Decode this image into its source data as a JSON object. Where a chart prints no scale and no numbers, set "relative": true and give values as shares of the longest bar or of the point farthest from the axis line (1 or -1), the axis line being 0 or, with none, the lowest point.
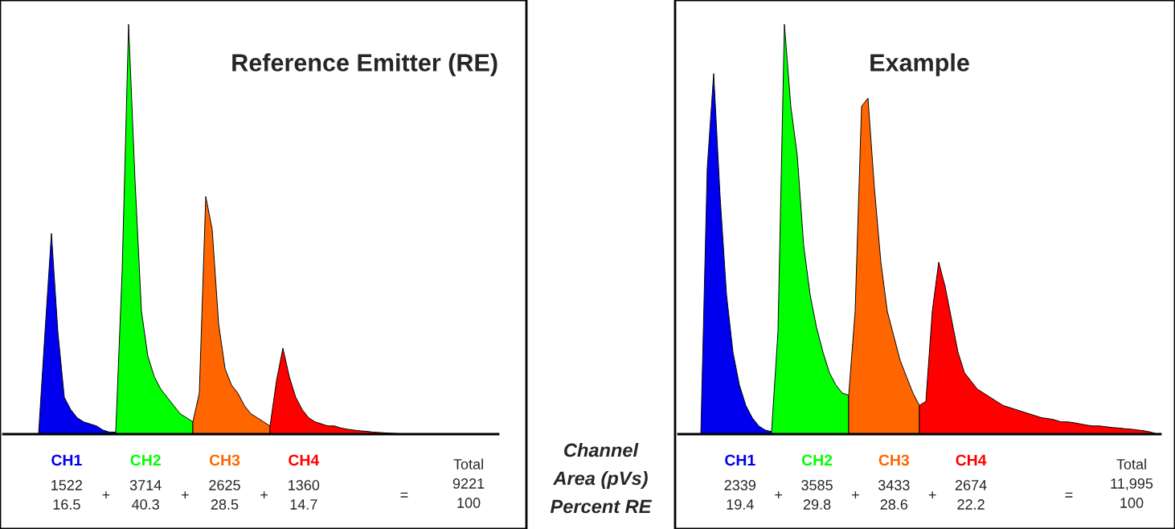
{
  "chart_data": [
    {
      "type": "area",
      "title": "Reference Emitter (RE)",
      "relative": true,
      "categories": [
        null,
        null,
        null,
        null,
        null,
        null,
        null,
        null,
        null,
        null,
        null,
        null,
        null,
        null,
        null,
        null,
        null,
        null,
        null,
        null,
        null,
        null,
        null,
        null,
        null,
        null,
        null,
        null,
        null,
        null,
        null,
        null,
        null,
        null,
        null,
        null,
        null,
        null,
        null,
        null,
        null,
        null,
        null,
        null,
        null,
        null,
        null,
        null,
        null,
        null,
        null,
        null,
        null,
        null,
        null,
        null,
        null,
        null,
        null,
        null,
        null,
        null,
        null,
        null,
        null,
        null,
        null,
        null,
        null,
        null,
        null,
        null,
        null,
        null,
        null,
        null,
        null
      ],
      "series": [
        {
          "name": "CH1",
          "color": "#0000ee",
          "values": [
            null,
            null,
            null,
            null,
            null,
            0,
            0.25,
            0.49,
            0.25,
            0.09,
            0.06,
            0.04,
            0.03,
            0.025,
            0.02,
            0.01,
            0.005,
            0.005,
            null,
            null,
            null,
            null,
            null,
            null,
            null,
            null,
            null,
            null,
            null,
            null,
            null,
            null,
            null,
            null,
            null,
            null,
            null,
            null,
            null,
            null,
            null,
            null,
            null,
            null,
            null,
            null,
            null,
            null,
            null,
            null,
            null,
            null,
            null,
            null,
            null,
            null,
            null,
            null,
            null,
            null,
            null,
            null,
            null,
            null,
            null,
            null,
            null,
            null,
            null,
            null,
            null,
            null,
            null,
            null,
            null,
            null,
            null
          ]
        },
        {
          "name": "CH2",
          "color": "#00ff00",
          "values": [
            null,
            null,
            null,
            null,
            null,
            null,
            null,
            null,
            null,
            null,
            null,
            null,
            null,
            null,
            null,
            null,
            null,
            0.005,
            0.4,
            1.0,
            0.62,
            0.3,
            0.19,
            0.14,
            0.11,
            0.09,
            0.07,
            0.05,
            0.04,
            0.03,
            null,
            null,
            null,
            null,
            null,
            null,
            null,
            null,
            null,
            null,
            null,
            null,
            null,
            null,
            null,
            null,
            null,
            null,
            null,
            null,
            null,
            null,
            null,
            null,
            null,
            null,
            null,
            null,
            null,
            null,
            null,
            null,
            null,
            null,
            null,
            null,
            null,
            null,
            null,
            null,
            null,
            null,
            null,
            null,
            null,
            null,
            null
          ]
        },
        {
          "name": "CH3",
          "color": "#ff6600",
          "values": [
            null,
            null,
            null,
            null,
            null,
            null,
            null,
            null,
            null,
            null,
            null,
            null,
            null,
            null,
            null,
            null,
            null,
            null,
            null,
            null,
            null,
            null,
            null,
            null,
            null,
            null,
            null,
            null,
            null,
            0.03,
            0.1,
            0.58,
            0.5,
            0.27,
            0.16,
            0.12,
            0.1,
            0.07,
            0.05,
            0.04,
            0.03,
            0.02,
            null,
            null,
            null,
            null,
            null,
            null,
            null,
            null,
            null,
            null,
            null,
            null,
            null,
            null,
            null,
            null,
            null,
            null,
            null,
            null,
            null,
            null,
            null,
            null,
            null,
            null,
            null,
            null,
            null,
            null,
            null,
            null,
            null,
            null,
            null
          ]
        },
        {
          "name": "CH4",
          "color": "#ff0000",
          "values": [
            null,
            null,
            null,
            null,
            null,
            null,
            null,
            null,
            null,
            null,
            null,
            null,
            null,
            null,
            null,
            null,
            null,
            null,
            null,
            null,
            null,
            null,
            null,
            null,
            null,
            null,
            null,
            null,
            null,
            null,
            null,
            null,
            null,
            null,
            null,
            null,
            null,
            null,
            null,
            null,
            null,
            0.02,
            0.13,
            0.21,
            0.14,
            0.09,
            0.06,
            0.04,
            0.03,
            0.025,
            0.02,
            0.02,
            0.015,
            0.012,
            0.01,
            0.008,
            0.007,
            0.005,
            0.004,
            0.003,
            0.002,
            0.001,
            0,
            null,
            null,
            null,
            null,
            null,
            null,
            null,
            null,
            null,
            null,
            null,
            null,
            null,
            null
          ]
        }
      ],
      "annotations": [
        "1522\n16.5",
        "+",
        "3714\n40.3",
        "+",
        "2625\n28.5",
        "+",
        "1360\n14.7",
        "=",
        "Total\n9221\n100"
      ]
    },
    {
      "type": "other",
      "annotations": [
        "Channel",
        "Area (pVs)",
        "Percent RE"
      ]
    },
    {
      "type": "area",
      "title": "Example",
      "relative": true,
      "categories": [
        null,
        null,
        null,
        null,
        null,
        null,
        null,
        null,
        null,
        null,
        null,
        null,
        null,
        null,
        null,
        null,
        null,
        null,
        null,
        null,
        null,
        null,
        null,
        null,
        null,
        null,
        null,
        null,
        null,
        null,
        null,
        null,
        null,
        null,
        null,
        null,
        null,
        null,
        null,
        null,
        null,
        null,
        null,
        null,
        null,
        null,
        null,
        null,
        null,
        null,
        null,
        null,
        null,
        null,
        null,
        null,
        null,
        null,
        null,
        null,
        null,
        null,
        null,
        null,
        null,
        null,
        null,
        null,
        null,
        null,
        null,
        null,
        null,
        null,
        null
      ],
      "series": [
        {
          "name": "CH1",
          "color": "#0000ee",
          "values": [
            null,
            null,
            null,
            0,
            0.65,
            0.88,
            0.58,
            0.34,
            0.2,
            0.12,
            0.07,
            0.04,
            0.02,
            0.01,
            0.006,
            null,
            null,
            null,
            null,
            null,
            null,
            null,
            null,
            null,
            null,
            null,
            null,
            null,
            null,
            null,
            null,
            null,
            null,
            null,
            null,
            null,
            null,
            null,
            null,
            null,
            null,
            null,
            null,
            null,
            null,
            null,
            null,
            null,
            null,
            null,
            null,
            null,
            null,
            null,
            null,
            null,
            null,
            null,
            null,
            null,
            null,
            null,
            null,
            null,
            null,
            null,
            null,
            null,
            null,
            null,
            null,
            null,
            null,
            null,
            null
          ]
        },
        {
          "name": "CH2",
          "color": "#00ff00",
          "values": [
            null,
            null,
            null,
            null,
            null,
            null,
            null,
            null,
            null,
            null,
            null,
            null,
            null,
            null,
            0.006,
            0.25,
            1.0,
            0.8,
            0.68,
            0.46,
            0.34,
            0.26,
            0.2,
            0.15,
            0.12,
            0.1,
            0.095,
            null,
            null,
            null,
            null,
            null,
            null,
            null,
            null,
            null,
            null,
            null,
            null,
            null,
            null,
            null,
            null,
            null,
            null,
            null,
            null,
            null,
            null,
            null,
            null,
            null,
            null,
            null,
            null,
            null,
            null,
            null,
            null,
            null,
            null,
            null,
            null,
            null,
            null,
            null,
            null,
            null,
            null,
            null,
            null,
            null,
            null,
            null,
            null
          ]
        },
        {
          "name": "CH3",
          "color": "#ff6600",
          "values": [
            null,
            null,
            null,
            null,
            null,
            null,
            null,
            null,
            null,
            null,
            null,
            null,
            null,
            null,
            null,
            null,
            null,
            null,
            null,
            null,
            null,
            null,
            null,
            null,
            null,
            null,
            0.095,
            0.3,
            0.8,
            0.82,
            0.6,
            0.42,
            0.3,
            0.24,
            0.18,
            0.14,
            0.1,
            0.07,
            null,
            null,
            null,
            null,
            null,
            null,
            null,
            null,
            null,
            null,
            null,
            null,
            null,
            null,
            null,
            null,
            null,
            null,
            null,
            null,
            null,
            null,
            null,
            null,
            null,
            null,
            null,
            null,
            null,
            null,
            null,
            null,
            null,
            null,
            null,
            null,
            null
          ]
        },
        {
          "name": "CH4",
          "color": "#ff0000",
          "values": [
            null,
            null,
            null,
            null,
            null,
            null,
            null,
            null,
            null,
            null,
            null,
            null,
            null,
            null,
            null,
            null,
            null,
            null,
            null,
            null,
            null,
            null,
            null,
            null,
            null,
            null,
            null,
            null,
            null,
            null,
            null,
            null,
            null,
            null,
            null,
            null,
            null,
            0.07,
            0.08,
            0.3,
            0.42,
            0.36,
            0.28,
            0.2,
            0.15,
            0.13,
            0.11,
            0.1,
            0.09,
            0.08,
            0.07,
            0.065,
            0.06,
            0.055,
            0.05,
            0.045,
            0.04,
            0.038,
            0.035,
            0.03,
            0.03,
            0.028,
            0.025,
            0.022,
            0.02,
            0.02,
            0.018,
            0.016,
            0.015,
            0.013,
            0.012,
            0.01,
            0.008,
            0.005,
            0
          ]
        }
      ],
      "annotations": [
        "2339\n19.4",
        "+",
        "3585\n29.8",
        "+",
        "3433\n28.6",
        "+",
        "2674\n22.2",
        "=",
        "Total\n11,995\n100"
      ]
    }
  ]
}
